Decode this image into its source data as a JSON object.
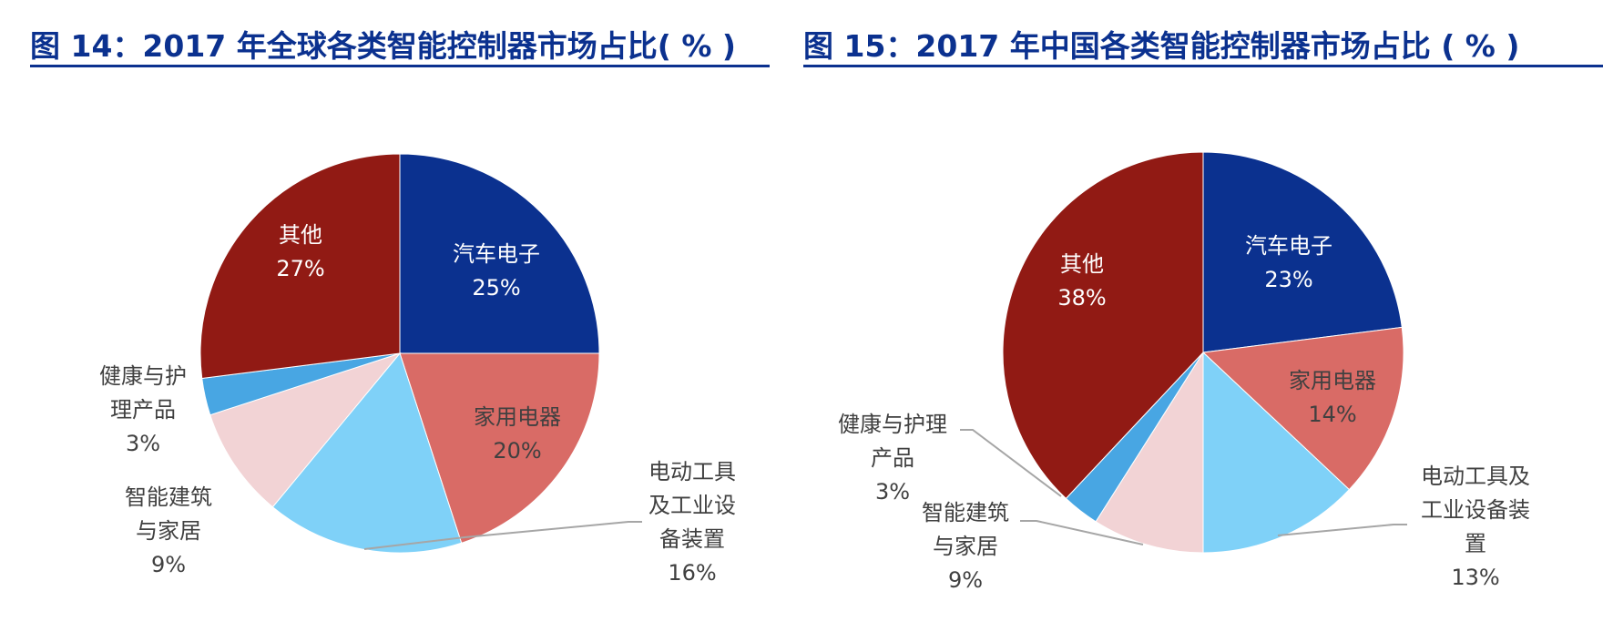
{
  "chart_data": [
    {
      "type": "pie",
      "title": "图 14：2017 年全球各类智能控制器市场占比（%）",
      "categories": [
        "汽车电子",
        "家用电器",
        "电动工具及工业设备装置",
        "智能建筑与家居",
        "健康与护理产品",
        "其他"
      ],
      "values": [
        25,
        20,
        16,
        9,
        3,
        27
      ],
      "unit": "%",
      "colors": [
        "#0b318f",
        "#d96b66",
        "#7fd1f8",
        "#f2d3d5",
        "#48a6e3",
        "#911a14"
      ],
      "start_angle": "12 o'clock, clockwise"
    },
    {
      "type": "pie",
      "title": "图 15：2017 年中国各类智能控制器市场占比（%）",
      "categories": [
        "汽车电子",
        "家用电器",
        "电动工具及工业设备装置",
        "智能建筑与家居",
        "健康与护理产品",
        "其他"
      ],
      "values": [
        23,
        14,
        13,
        9,
        3,
        38
      ],
      "unit": "%",
      "colors": [
        "#0b318f",
        "#d96b66",
        "#7fd1f8",
        "#f2d3d5",
        "#48a6e3",
        "#911a14"
      ],
      "start_angle": "12 o'clock, clockwise"
    }
  ],
  "chart1": {
    "title": "图 14：2017 年全球各类智能控制器市场占比( % )",
    "labels": {
      "auto": {
        "l1": "汽车电子",
        "pct": "25%"
      },
      "home": {
        "l1": "家用电器",
        "pct": "20%"
      },
      "tools": {
        "l1": "电动工具",
        "l2": "及工业设",
        "l3": "备装置",
        "pct": "16%"
      },
      "building": {
        "l1": "智能建筑",
        "l2": "与家居",
        "pct": "9%"
      },
      "health": {
        "l1": "健康与护",
        "l2": "理产品",
        "pct": "3%"
      },
      "other": {
        "l1": "其他",
        "pct": "27%"
      }
    }
  },
  "chart2": {
    "title": "图 15：2017 年中国各类智能控制器市场占比 ( % )",
    "labels": {
      "auto": {
        "l1": "汽车电子",
        "pct": "23%"
      },
      "home": {
        "l1": "家用电器",
        "pct": "14%"
      },
      "tools": {
        "l1": "电动工具及",
        "l2": "工业设备装",
        "l3": "置",
        "pct": "13%"
      },
      "building": {
        "l1": "智能建筑",
        "l2": "与家居",
        "pct": "9%"
      },
      "health": {
        "l1": "健康与护理",
        "l2": "产品",
        "pct": "3%"
      },
      "other": {
        "l1": "其他",
        "pct": "38%"
      }
    }
  }
}
